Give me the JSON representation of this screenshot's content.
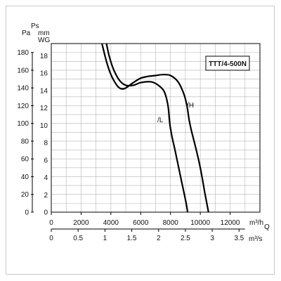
{
  "chart_data": {
    "type": "line",
    "title": "TTT/4-500N",
    "ylabel_pa": "Pa",
    "ylabel_ps": "Ps",
    "ylabel_mm": "mm",
    "ylabel_wg": "WG",
    "xlabel_q": "Q",
    "x_unit_m3h": "m³/h",
    "x_unit_m3s": "m³/s",
    "xlim": [
      0,
      14000
    ],
    "ylim_pa": [
      0,
      190
    ],
    "ylim_mm": [
      0,
      19.4
    ],
    "x_ticks_m3h": [
      "0",
      "2000",
      "4000",
      "6000",
      "8000",
      "10000",
      "12000"
    ],
    "x_tick_values_m3h": [
      0,
      2000,
      4000,
      6000,
      8000,
      10000,
      12000
    ],
    "x_ticks_m3s": [
      "0",
      "0.5",
      "1",
      "1.5",
      "2",
      "2.5",
      "3",
      "3.5"
    ],
    "x_tick_values_m3s": [
      0,
      0.5,
      1,
      1.5,
      2,
      2.5,
      3,
      3.5
    ],
    "y_ticks_pa": [
      "0",
      "20",
      "40",
      "60",
      "80",
      "100",
      "120",
      "140",
      "160",
      "180"
    ],
    "y_tick_values_pa": [
      0,
      20,
      40,
      60,
      80,
      100,
      120,
      140,
      160,
      180
    ],
    "y_ticks_mm": [
      "0",
      "2",
      "4",
      "6",
      "8",
      "10",
      "12",
      "14",
      "16",
      "18"
    ],
    "y_tick_values_mm": [
      0,
      2,
      4,
      6,
      8,
      10,
      12,
      14,
      16,
      18
    ],
    "grid": true,
    "series": [
      {
        "name": "/L",
        "color": "#000000",
        "points": [
          [
            3700,
            190
          ],
          [
            3900,
            175
          ],
          [
            4200,
            160
          ],
          [
            4600,
            148
          ],
          [
            5000,
            143
          ],
          [
            5500,
            143
          ],
          [
            6000,
            146
          ],
          [
            6600,
            147
          ],
          [
            7000,
            145
          ],
          [
            7500,
            138
          ],
          [
            7700,
            130
          ],
          [
            7850,
            118
          ],
          [
            7950,
            100
          ],
          [
            8100,
            85
          ],
          [
            8300,
            70
          ],
          [
            8550,
            50
          ],
          [
            8800,
            30
          ],
          [
            9050,
            10
          ],
          [
            9150,
            0
          ]
        ]
      },
      {
        "name": "/H",
        "color": "#000000",
        "points": [
          [
            3400,
            190
          ],
          [
            3700,
            170
          ],
          [
            4000,
            155
          ],
          [
            4400,
            143
          ],
          [
            4700,
            139
          ],
          [
            5000,
            140
          ],
          [
            5500,
            146
          ],
          [
            6000,
            151
          ],
          [
            6500,
            153
          ],
          [
            7000,
            154
          ],
          [
            7500,
            155
          ],
          [
            8000,
            154
          ],
          [
            8500,
            147
          ],
          [
            8900,
            133
          ],
          [
            9100,
            120
          ],
          [
            9250,
            104
          ],
          [
            9400,
            92
          ],
          [
            9700,
            72
          ],
          [
            10000,
            50
          ],
          [
            10300,
            22
          ],
          [
            10550,
            0
          ]
        ]
      }
    ]
  }
}
